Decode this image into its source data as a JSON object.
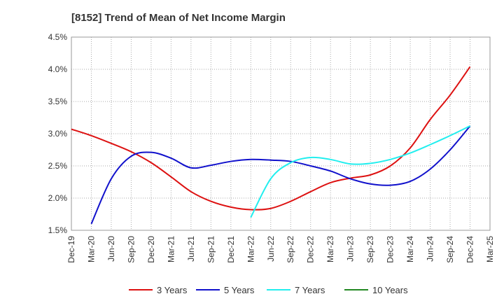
{
  "chart_data": {
    "type": "line",
    "title": "[8152]  Trend of Mean of Net Income Margin",
    "xlabel": "",
    "ylabel": "",
    "ylim": [
      1.5,
      4.5
    ],
    "yticks": [
      "1.5%",
      "2.0%",
      "2.5%",
      "3.0%",
      "3.5%",
      "4.0%",
      "4.5%"
    ],
    "ytick_values": [
      1.5,
      2.0,
      2.5,
      3.0,
      3.5,
      4.0,
      4.5
    ],
    "categories": [
      "Dec-19",
      "Mar-20",
      "Jun-20",
      "Sep-20",
      "Dec-20",
      "Mar-21",
      "Jun-21",
      "Sep-21",
      "Dec-21",
      "Mar-22",
      "Jun-22",
      "Sep-22",
      "Dec-22",
      "Mar-23",
      "Jun-23",
      "Sep-23",
      "Dec-23",
      "Mar-24",
      "Jun-24",
      "Sep-24",
      "Dec-24",
      "Mar-25"
    ],
    "grid": true,
    "legend_position": "bottom",
    "series": [
      {
        "name": "3 Years",
        "color": "#dd1111",
        "values": [
          3.07,
          2.97,
          2.85,
          2.72,
          2.55,
          2.33,
          2.1,
          1.95,
          1.86,
          1.82,
          1.84,
          1.95,
          2.1,
          2.24,
          2.31,
          2.36,
          2.5,
          2.78,
          3.22,
          3.6,
          4.04,
          null
        ]
      },
      {
        "name": "5 Years",
        "color": "#1111cc",
        "values": [
          null,
          1.6,
          2.3,
          2.65,
          2.71,
          2.62,
          2.47,
          2.51,
          2.57,
          2.6,
          2.59,
          2.57,
          2.5,
          2.42,
          2.3,
          2.22,
          2.2,
          2.26,
          2.45,
          2.75,
          3.12,
          null
        ]
      },
      {
        "name": "7 Years",
        "color": "#22eeee",
        "values": [
          null,
          null,
          null,
          null,
          null,
          null,
          null,
          null,
          null,
          1.7,
          2.3,
          2.55,
          2.63,
          2.6,
          2.53,
          2.54,
          2.6,
          2.7,
          2.83,
          2.97,
          3.12,
          null
        ]
      },
      {
        "name": "10 Years",
        "color": "#228822",
        "values": [
          null,
          null,
          null,
          null,
          null,
          null,
          null,
          null,
          null,
          null,
          null,
          null,
          null,
          null,
          null,
          null,
          null,
          null,
          null,
          null,
          null,
          null
        ]
      }
    ]
  }
}
